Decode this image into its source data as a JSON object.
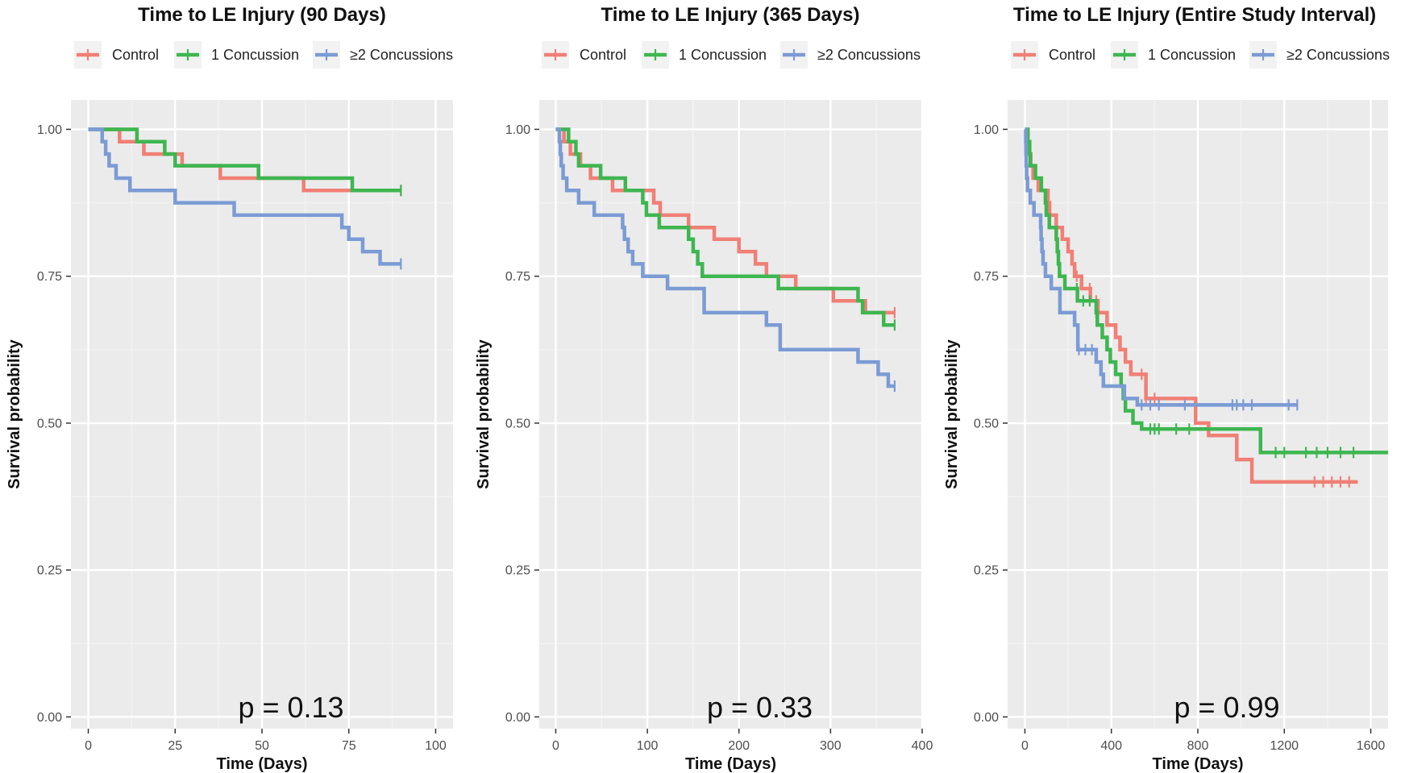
{
  "colors": {
    "Control": "#F07F75",
    "1 Concussion": "#3EB650",
    "≥2 Concussions": "#7B9BD4",
    "panel_background": "#EBEBEB",
    "grid_major": "#FFFFFF",
    "grid_minor": "#F4F4F4"
  },
  "chart_data": [
    {
      "type": "line",
      "subtype": "kaplan-meier-step",
      "title": "Time to LE Injury (90 Days)",
      "xlabel": "Time (Days)",
      "ylabel": "Survival probability",
      "xlim": [
        -5,
        105
      ],
      "ylim": [
        -0.02,
        1.05
      ],
      "xticks": [
        0,
        25,
        50,
        75,
        100
      ],
      "xtick_labels": [
        "0",
        "25",
        "50",
        "75",
        "100"
      ],
      "yticks": [
        0,
        0.25,
        0.5,
        0.75,
        1
      ],
      "ytick_labels": [
        "0.00",
        "0.25",
        "0.50",
        "0.75",
        "1.00"
      ],
      "annotation": "p = 0.13",
      "legend": [
        "Control",
        "1 Concussion",
        "≥2 Concussions"
      ],
      "legend_position": "top",
      "grid": true,
      "series": [
        {
          "name": "Control",
          "color": "#F07F75",
          "steps": [
            [
              0,
              1.0
            ],
            [
              9,
              0.979
            ],
            [
              16,
              0.958
            ],
            [
              27,
              0.938
            ],
            [
              38,
              0.917
            ],
            [
              62,
              0.896
            ],
            [
              90,
              0.896
            ]
          ],
          "censor": [
            90
          ]
        },
        {
          "name": "1 Concussion",
          "color": "#3EB650",
          "steps": [
            [
              0,
              1.0
            ],
            [
              14,
              0.979
            ],
            [
              22,
              0.958
            ],
            [
              25,
              0.938
            ],
            [
              49,
              0.917
            ],
            [
              76,
              0.896
            ],
            [
              90,
              0.896
            ]
          ],
          "censor": [
            90
          ]
        },
        {
          "name": "≥2 Concussions",
          "color": "#7B9BD4",
          "steps": [
            [
              0,
              1.0
            ],
            [
              4,
              0.979
            ],
            [
              5,
              0.958
            ],
            [
              6,
              0.938
            ],
            [
              8,
              0.917
            ],
            [
              12,
              0.896
            ],
            [
              25,
              0.875
            ],
            [
              42,
              0.854
            ],
            [
              73,
              0.833
            ],
            [
              75,
              0.813
            ],
            [
              79,
              0.792
            ],
            [
              84,
              0.771
            ],
            [
              90,
              0.771
            ]
          ],
          "censor": [
            90
          ]
        }
      ]
    },
    {
      "type": "line",
      "subtype": "kaplan-meier-step",
      "title": "Time to LE Injury (365 Days)",
      "xlabel": "Time (Days)",
      "ylabel": "Survival probability",
      "xlim": [
        -18,
        400
      ],
      "ylim": [
        -0.02,
        1.05
      ],
      "xticks": [
        0,
        100,
        200,
        300,
        400
      ],
      "xtick_labels": [
        "0",
        "100",
        "200",
        "300",
        "400"
      ],
      "yticks": [
        0,
        0.25,
        0.5,
        0.75,
        1
      ],
      "ytick_labels": [
        "0.00",
        "0.25",
        "0.50",
        "0.75",
        "1.00"
      ],
      "annotation": "p = 0.33",
      "legend": [
        "Control",
        "1 Concussion",
        "≥2 Concussions"
      ],
      "legend_position": "top",
      "grid": true,
      "series": [
        {
          "name": "Control",
          "color": "#F07F75",
          "steps": [
            [
              0,
              1.0
            ],
            [
              9,
              0.979
            ],
            [
              16,
              0.958
            ],
            [
              27,
              0.938
            ],
            [
              38,
              0.917
            ],
            [
              62,
              0.896
            ],
            [
              107,
              0.875
            ],
            [
              114,
              0.854
            ],
            [
              145,
              0.833
            ],
            [
              173,
              0.813
            ],
            [
              200,
              0.792
            ],
            [
              218,
              0.771
            ],
            [
              230,
              0.75
            ],
            [
              262,
              0.729
            ],
            [
              303,
              0.708
            ],
            [
              338,
              0.688
            ],
            [
              370,
              0.688
            ]
          ],
          "censor": [
            370
          ]
        },
        {
          "name": "1 Concussion",
          "color": "#3EB650",
          "steps": [
            [
              0,
              1.0
            ],
            [
              14,
              0.979
            ],
            [
              22,
              0.958
            ],
            [
              25,
              0.938
            ],
            [
              49,
              0.917
            ],
            [
              76,
              0.896
            ],
            [
              95,
              0.875
            ],
            [
              99,
              0.854
            ],
            [
              113,
              0.833
            ],
            [
              145,
              0.813
            ],
            [
              150,
              0.792
            ],
            [
              155,
              0.771
            ],
            [
              160,
              0.75
            ],
            [
              243,
              0.729
            ],
            [
              330,
              0.708
            ],
            [
              335,
              0.688
            ],
            [
              358,
              0.667
            ],
            [
              370,
              0.667
            ]
          ],
          "censor": [
            370
          ]
        },
        {
          "name": "≥2 Concussions",
          "color": "#7B9BD4",
          "steps": [
            [
              0,
              1.0
            ],
            [
              4,
              0.979
            ],
            [
              5,
              0.958
            ],
            [
              6,
              0.938
            ],
            [
              8,
              0.917
            ],
            [
              12,
              0.896
            ],
            [
              25,
              0.875
            ],
            [
              42,
              0.854
            ],
            [
              73,
              0.833
            ],
            [
              75,
              0.813
            ],
            [
              79,
              0.792
            ],
            [
              84,
              0.771
            ],
            [
              95,
              0.75
            ],
            [
              122,
              0.729
            ],
            [
              162,
              0.688
            ],
            [
              230,
              0.667
            ],
            [
              245,
              0.625
            ],
            [
              330,
              0.604
            ],
            [
              352,
              0.583
            ],
            [
              363,
              0.563
            ],
            [
              370,
              0.563
            ]
          ],
          "censor": [
            370
          ]
        }
      ]
    },
    {
      "type": "line",
      "subtype": "kaplan-meier-step",
      "title": "Time to LE Injury (Entire Study Interval)",
      "xlabel": "Time (Days)",
      "ylabel": "Survival probability",
      "xlim": [
        -80,
        1680
      ],
      "ylim": [
        -0.02,
        1.05
      ],
      "xticks": [
        0,
        400,
        800,
        1200,
        1600
      ],
      "xtick_labels": [
        "0",
        "400",
        "800",
        "1200",
        "1600"
      ],
      "yticks": [
        0,
        0.25,
        0.5,
        0.75,
        1
      ],
      "ytick_labels": [
        "0.00",
        "0.25",
        "0.50",
        "0.75",
        "1.00"
      ],
      "annotation": "p = 0.99",
      "legend": [
        "Control",
        "1 Concussion",
        "≥2 Concussions"
      ],
      "legend_position": "top",
      "grid": true,
      "series": [
        {
          "name": "Control",
          "color": "#F07F75",
          "steps": [
            [
              0,
              1.0
            ],
            [
              9,
              0.979
            ],
            [
              16,
              0.958
            ],
            [
              27,
              0.938
            ],
            [
              38,
              0.917
            ],
            [
              62,
              0.896
            ],
            [
              107,
              0.875
            ],
            [
              114,
              0.854
            ],
            [
              145,
              0.833
            ],
            [
              173,
              0.813
            ],
            [
              200,
              0.792
            ],
            [
              218,
              0.771
            ],
            [
              230,
              0.75
            ],
            [
              262,
              0.729
            ],
            [
              303,
              0.708
            ],
            [
              338,
              0.688
            ],
            [
              380,
              0.667
            ],
            [
              420,
              0.646
            ],
            [
              440,
              0.625
            ],
            [
              465,
              0.604
            ],
            [
              490,
              0.583
            ],
            [
              560,
              0.542
            ],
            [
              790,
              0.5
            ],
            [
              850,
              0.479
            ],
            [
              980,
              0.438
            ],
            [
              1050,
              0.4
            ],
            [
              1540,
              0.4
            ]
          ],
          "censor": [
            240,
            300,
            330,
            540,
            560,
            600,
            1340,
            1380,
            1420,
            1460,
            1500
          ]
        },
        {
          "name": "1 Concussion",
          "color": "#3EB650",
          "steps": [
            [
              0,
              1.0
            ],
            [
              14,
              0.979
            ],
            [
              22,
              0.958
            ],
            [
              25,
              0.938
            ],
            [
              49,
              0.917
            ],
            [
              76,
              0.896
            ],
            [
              95,
              0.875
            ],
            [
              99,
              0.854
            ],
            [
              113,
              0.833
            ],
            [
              145,
              0.813
            ],
            [
              150,
              0.792
            ],
            [
              155,
              0.771
            ],
            [
              160,
              0.75
            ],
            [
              185,
              0.729
            ],
            [
              243,
              0.708
            ],
            [
              330,
              0.688
            ],
            [
              335,
              0.667
            ],
            [
              358,
              0.646
            ],
            [
              380,
              0.625
            ],
            [
              395,
              0.604
            ],
            [
              420,
              0.583
            ],
            [
              445,
              0.563
            ],
            [
              455,
              0.542
            ],
            [
              465,
              0.521
            ],
            [
              500,
              0.5
            ],
            [
              540,
              0.49
            ],
            [
              1090,
              0.45
            ],
            [
              1680,
              0.45
            ]
          ],
          "censor": [
            240,
            270,
            300,
            330,
            580,
            600,
            620,
            700,
            760,
            1160,
            1200,
            1300,
            1350,
            1400,
            1460,
            1520
          ]
        },
        {
          "name": "≥2 Concussions",
          "color": "#7B9BD4",
          "steps": [
            [
              0,
              1.0
            ],
            [
              4,
              0.979
            ],
            [
              5,
              0.958
            ],
            [
              6,
              0.938
            ],
            [
              8,
              0.917
            ],
            [
              12,
              0.896
            ],
            [
              25,
              0.875
            ],
            [
              42,
              0.854
            ],
            [
              73,
              0.833
            ],
            [
              75,
              0.813
            ],
            [
              79,
              0.792
            ],
            [
              84,
              0.771
            ],
            [
              95,
              0.75
            ],
            [
              122,
              0.729
            ],
            [
              162,
              0.688
            ],
            [
              230,
              0.667
            ],
            [
              245,
              0.625
            ],
            [
              330,
              0.604
            ],
            [
              352,
              0.583
            ],
            [
              363,
              0.563
            ],
            [
              460,
              0.542
            ],
            [
              520,
              0.531
            ],
            [
              1260,
              0.531
            ]
          ],
          "censor": [
            250,
            280,
            310,
            540,
            580,
            620,
            740,
            960,
            980,
            1010,
            1050,
            1220,
            1260
          ]
        }
      ]
    }
  ]
}
